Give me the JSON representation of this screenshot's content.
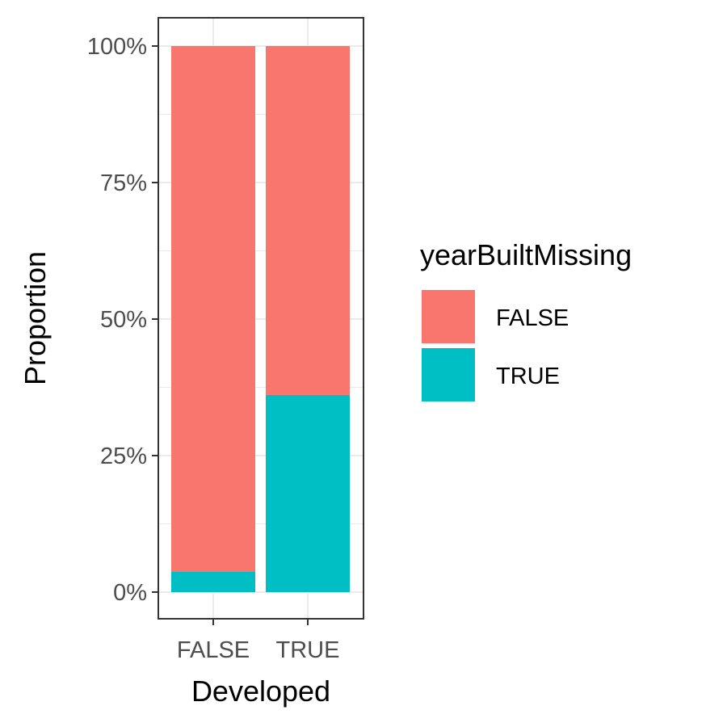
{
  "chart_data": {
    "type": "bar",
    "stacked": true,
    "categories": [
      "FALSE",
      "TRUE"
    ],
    "xlabel": "Developed",
    "ylabel": "Proportion",
    "ylim": [
      0,
      1
    ],
    "yticks": [
      0,
      0.25,
      0.5,
      0.75,
      1
    ],
    "ytick_labels": [
      "0%",
      "25%",
      "50%",
      "75%",
      "100%"
    ],
    "grid": true,
    "legend": {
      "title": "yearBuiltMissing",
      "placement": "right"
    },
    "series": [
      {
        "name": "FALSE",
        "color": "#F8766D",
        "values": [
          0.962,
          0.639
        ]
      },
      {
        "name": "TRUE",
        "color": "#00BFC4",
        "values": [
          0.038,
          0.361
        ]
      }
    ]
  }
}
